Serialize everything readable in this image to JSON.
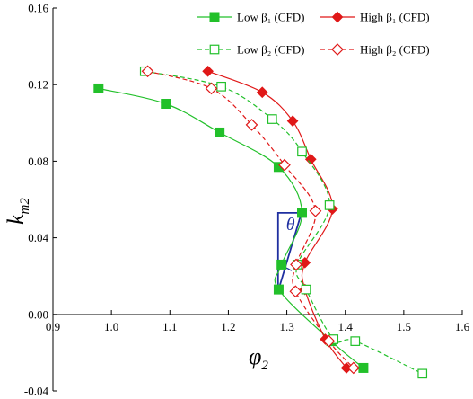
{
  "chart_data": {
    "type": "line",
    "xlabel": "φ",
    "xlabel_sub": "2",
    "ylabel": "k",
    "ylabel_sub": "m2",
    "xlim": [
      0.9,
      1.6
    ],
    "ylim": [
      -0.04,
      0.16
    ],
    "xticks": [
      "0.9",
      "1.0",
      "1.1",
      "1.2",
      "1.3",
      "1.4",
      "1.5",
      "1.6"
    ],
    "yticks": [
      "-0.04",
      "0.00",
      "0.04",
      "0.08",
      "0.12",
      "0.16"
    ],
    "grid": false,
    "legend_position": "top-right",
    "annotation": "θ",
    "annotation_triangle": [
      [
        1.285,
        0.012
      ],
      [
        1.285,
        0.053
      ],
      [
        1.325,
        0.053
      ]
    ],
    "colors": {
      "green": "#22c02a",
      "red": "#e01818",
      "blue": "#1f2fa0"
    },
    "series": [
      {
        "name": "Low β₁ (CFD)",
        "color": "#22c02a",
        "marker": "filled-square",
        "dashed": false,
        "points": [
          [
            0.978,
            0.118
          ],
          [
            1.093,
            0.11
          ],
          [
            1.185,
            0.095
          ],
          [
            1.286,
            0.077
          ],
          [
            1.326,
            0.053
          ],
          [
            1.291,
            0.026
          ],
          [
            1.286,
            0.013
          ],
          [
            1.376,
            -0.014
          ],
          [
            1.431,
            -0.028
          ]
        ]
      },
      {
        "name": "High β₁ (CFD)",
        "color": "#e01818",
        "marker": "filled-diamond",
        "dashed": false,
        "points": [
          [
            1.165,
            0.127
          ],
          [
            1.258,
            0.116
          ],
          [
            1.31,
            0.101
          ],
          [
            1.341,
            0.081
          ],
          [
            1.378,
            0.055
          ],
          [
            1.331,
            0.027
          ],
          [
            1.331,
            0.013
          ],
          [
            1.366,
            -0.013
          ],
          [
            1.402,
            -0.028
          ]
        ]
      },
      {
        "name": "Low β₂ (CFD)",
        "color": "#22c02a",
        "marker": "open-square",
        "dashed": true,
        "points": [
          [
            1.057,
            0.127
          ],
          [
            1.188,
            0.119
          ],
          [
            1.275,
            0.102
          ],
          [
            1.326,
            0.085
          ],
          [
            1.373,
            0.057
          ],
          [
            1.318,
            0.026
          ],
          [
            1.333,
            0.013
          ],
          [
            1.38,
            -0.013
          ],
          [
            1.417,
            -0.014
          ],
          [
            1.532,
            -0.031
          ]
        ]
      },
      {
        "name": "High β₂ (CFD)",
        "color": "#e01818",
        "marker": "open-diamond",
        "dashed": true,
        "points": [
          [
            1.062,
            0.127
          ],
          [
            1.171,
            0.118
          ],
          [
            1.24,
            0.099
          ],
          [
            1.296,
            0.078
          ],
          [
            1.349,
            0.054
          ],
          [
            1.316,
            0.026
          ],
          [
            1.315,
            0.012
          ],
          [
            1.372,
            -0.014
          ],
          [
            1.414,
            -0.028
          ]
        ]
      }
    ]
  }
}
